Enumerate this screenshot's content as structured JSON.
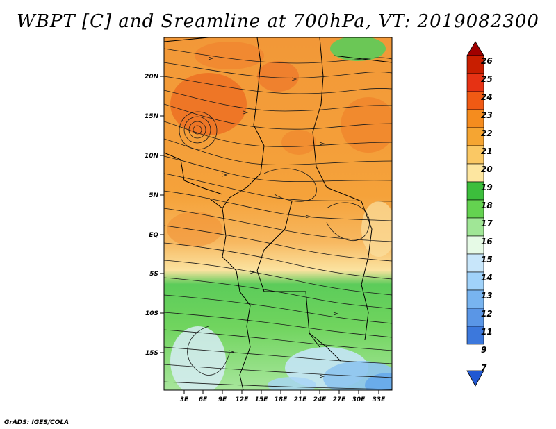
{
  "title": "WBPT [C] and Sreamline at 700hPa, VT: 2019082300",
  "footer": "GrADS: IGES/COLA",
  "map": {
    "lat_labels": [
      "20N",
      "15N",
      "10N",
      "5N",
      "EQ",
      "5S",
      "10S",
      "15S"
    ],
    "lon_labels": [
      "3E",
      "6E",
      "9E",
      "12E",
      "15E",
      "18E",
      "21E",
      "24E",
      "27E",
      "30E",
      "33E"
    ]
  },
  "colorbar": {
    "levels": [
      "26",
      "25",
      "24",
      "23",
      "22",
      "21",
      "20",
      "19",
      "18",
      "17",
      "16",
      "15",
      "14",
      "13",
      "12",
      "11",
      "9",
      "7"
    ],
    "colors": [
      "#a00000",
      "#c81e00",
      "#e63214",
      "#f05a14",
      "#f58c1e",
      "#f5a532",
      "#fac864",
      "#fde6a0",
      "#3cbe3c",
      "#64d250",
      "#a0e696",
      "#e6fae6",
      "#c8e6fa",
      "#a0d2fa",
      "#78b4f0",
      "#5a96e6",
      "#3c78dc",
      "#2058d2"
    ]
  }
}
